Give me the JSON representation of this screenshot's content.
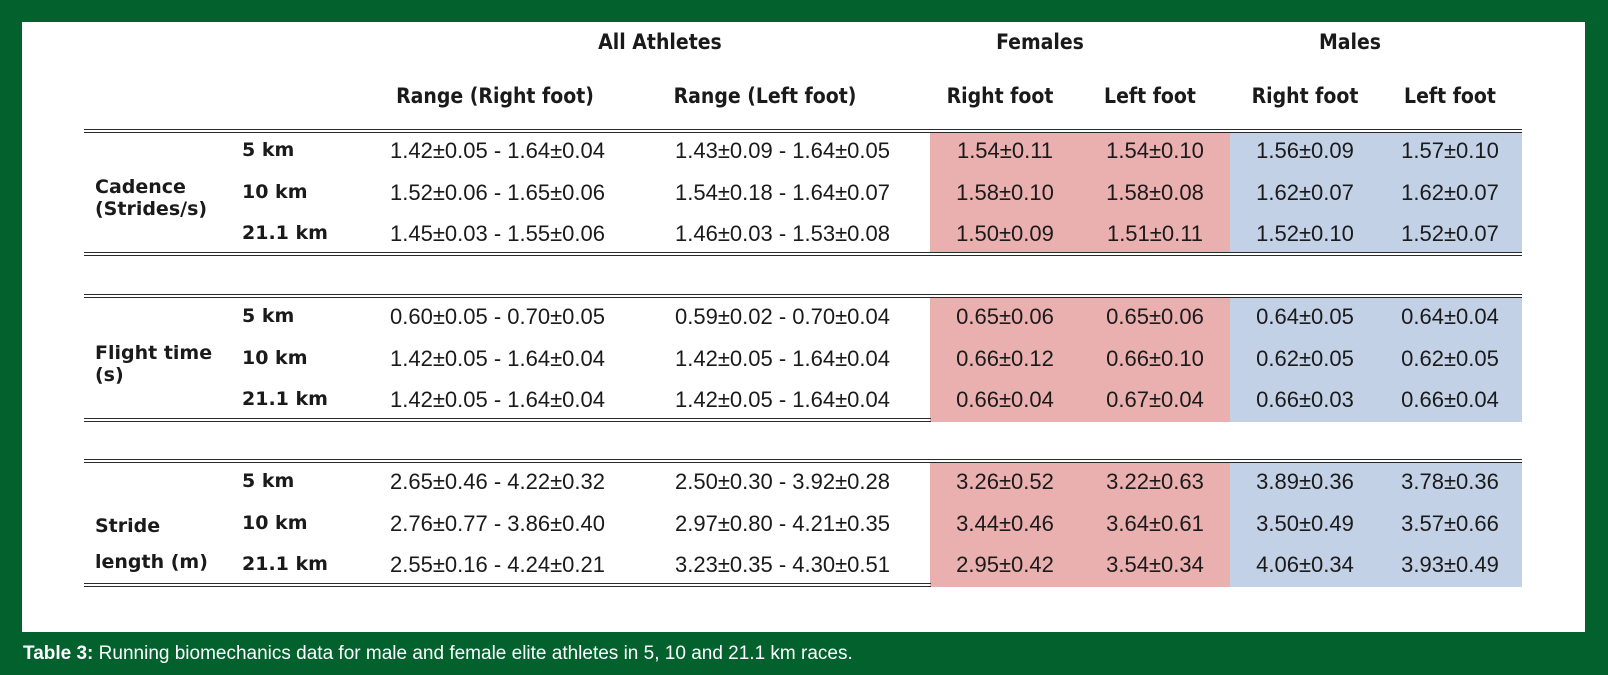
{
  "table": {
    "group_headers": [
      "All Athletes",
      "Females",
      "Males"
    ],
    "column_headers": [
      "Range (Right foot)",
      "Range (Left foot)",
      "Right foot",
      "Left foot",
      "Right foot",
      "Left foot"
    ],
    "colors": {
      "female_band": "#eab0b0",
      "male_band": "#c3d1e7",
      "frame": "#02612c"
    },
    "sections": [
      {
        "metric": "Cadence (Strides/s)",
        "rows": [
          {
            "distance": "5 km",
            "cells": [
              "1.42±0.05 - 1.64±0.04",
              "1.43±0.09 - 1.64±0.05",
              "1.54±0.11",
              "1.54±0.10",
              "1.56±0.09",
              "1.57±0.10"
            ]
          },
          {
            "distance": "10 km",
            "cells": [
              "1.52±0.06 - 1.65±0.06",
              "1.54±0.18 - 1.64±0.07",
              "1.58±0.10",
              "1.58±0.08",
              "1.62±0.07",
              "1.62±0.07"
            ]
          },
          {
            "distance": "21.1 km",
            "cells": [
              "1.45±0.03 - 1.55±0.06",
              "1.46±0.03 - 1.53±0.08",
              "1.50±0.09",
              "1.51±0.11",
              "1.52±0.10",
              "1.52±0.07"
            ]
          }
        ]
      },
      {
        "metric": "Flight time (s)",
        "rows": [
          {
            "distance": "5 km",
            "cells": [
              "0.60±0.05 - 0.70±0.05",
              "0.59±0.02 - 0.70±0.04",
              "0.65±0.06",
              "0.65±0.06",
              "0.64±0.05",
              "0.64±0.04"
            ]
          },
          {
            "distance": "10 km",
            "cells": [
              "1.42±0.05 - 1.64±0.04",
              "1.42±0.05 - 1.64±0.04",
              "0.66±0.12",
              "0.66±0.10",
              "0.62±0.05",
              "0.62±0.05"
            ]
          },
          {
            "distance": "21.1 km",
            "cells": [
              "1.42±0.05 - 1.64±0.04",
              "1.42±0.05 - 1.64±0.04",
              "0.66±0.04",
              "0.67±0.04",
              "0.66±0.03",
              "0.66±0.04"
            ]
          }
        ]
      },
      {
        "metric": "Stride length (m)",
        "rows": [
          {
            "distance": "5 km",
            "cells": [
              "2.65±0.46 - 4.22±0.32",
              "2.50±0.30 - 3.92±0.28",
              "3.26±0.52",
              "3.22±0.63",
              "3.89±0.36",
              "3.78±0.36"
            ]
          },
          {
            "distance": "10 km",
            "cells": [
              "2.76±0.77 - 3.86±0.40",
              "2.97±0.80 - 4.21±0.35",
              "3.44±0.46",
              "3.64±0.61",
              "3.50±0.49",
              "3.57±0.66"
            ]
          },
          {
            "distance": "21.1 km",
            "cells": [
              "2.55±0.16 - 4.24±0.21",
              "3.23±0.35 - 4.30±0.51",
              "2.95±0.42",
              "3.54±0.34",
              "4.06±0.34",
              "3.93±0.49"
            ]
          }
        ]
      }
    ]
  },
  "caption": {
    "label": "Table 3:",
    "text": " Running biomechanics data for male and female elite athletes in 5, 10 and 21.1 km races."
  }
}
